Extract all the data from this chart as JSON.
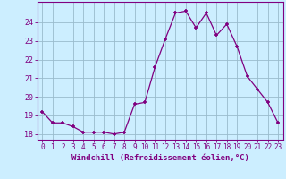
{
  "hours": [
    0,
    1,
    2,
    3,
    4,
    5,
    6,
    7,
    8,
    9,
    10,
    11,
    12,
    13,
    14,
    15,
    16,
    17,
    18,
    19,
    20,
    21,
    22,
    23
  ],
  "values": [
    19.2,
    18.6,
    18.6,
    18.4,
    18.1,
    18.1,
    18.1,
    18.0,
    18.1,
    19.6,
    19.7,
    21.6,
    23.1,
    24.5,
    24.6,
    23.7,
    24.5,
    23.3,
    23.9,
    22.7,
    21.1,
    20.4,
    19.7,
    18.6
  ],
  "line_color": "#800080",
  "marker": "+",
  "bg_color": "#cceeff",
  "grid_color": "#99bbcc",
  "ylabel_ticks": [
    18,
    19,
    20,
    21,
    22,
    23,
    24
  ],
  "xlabel": "Windchill (Refroidissement éolien,°C)",
  "xlim": [
    -0.5,
    23.5
  ],
  "ylim": [
    17.7,
    25.1
  ],
  "tick_color": "#800080",
  "label_color": "#800080",
  "font_family": "monospace",
  "tick_fontsize": 5.5,
  "xlabel_fontsize": 6.5
}
